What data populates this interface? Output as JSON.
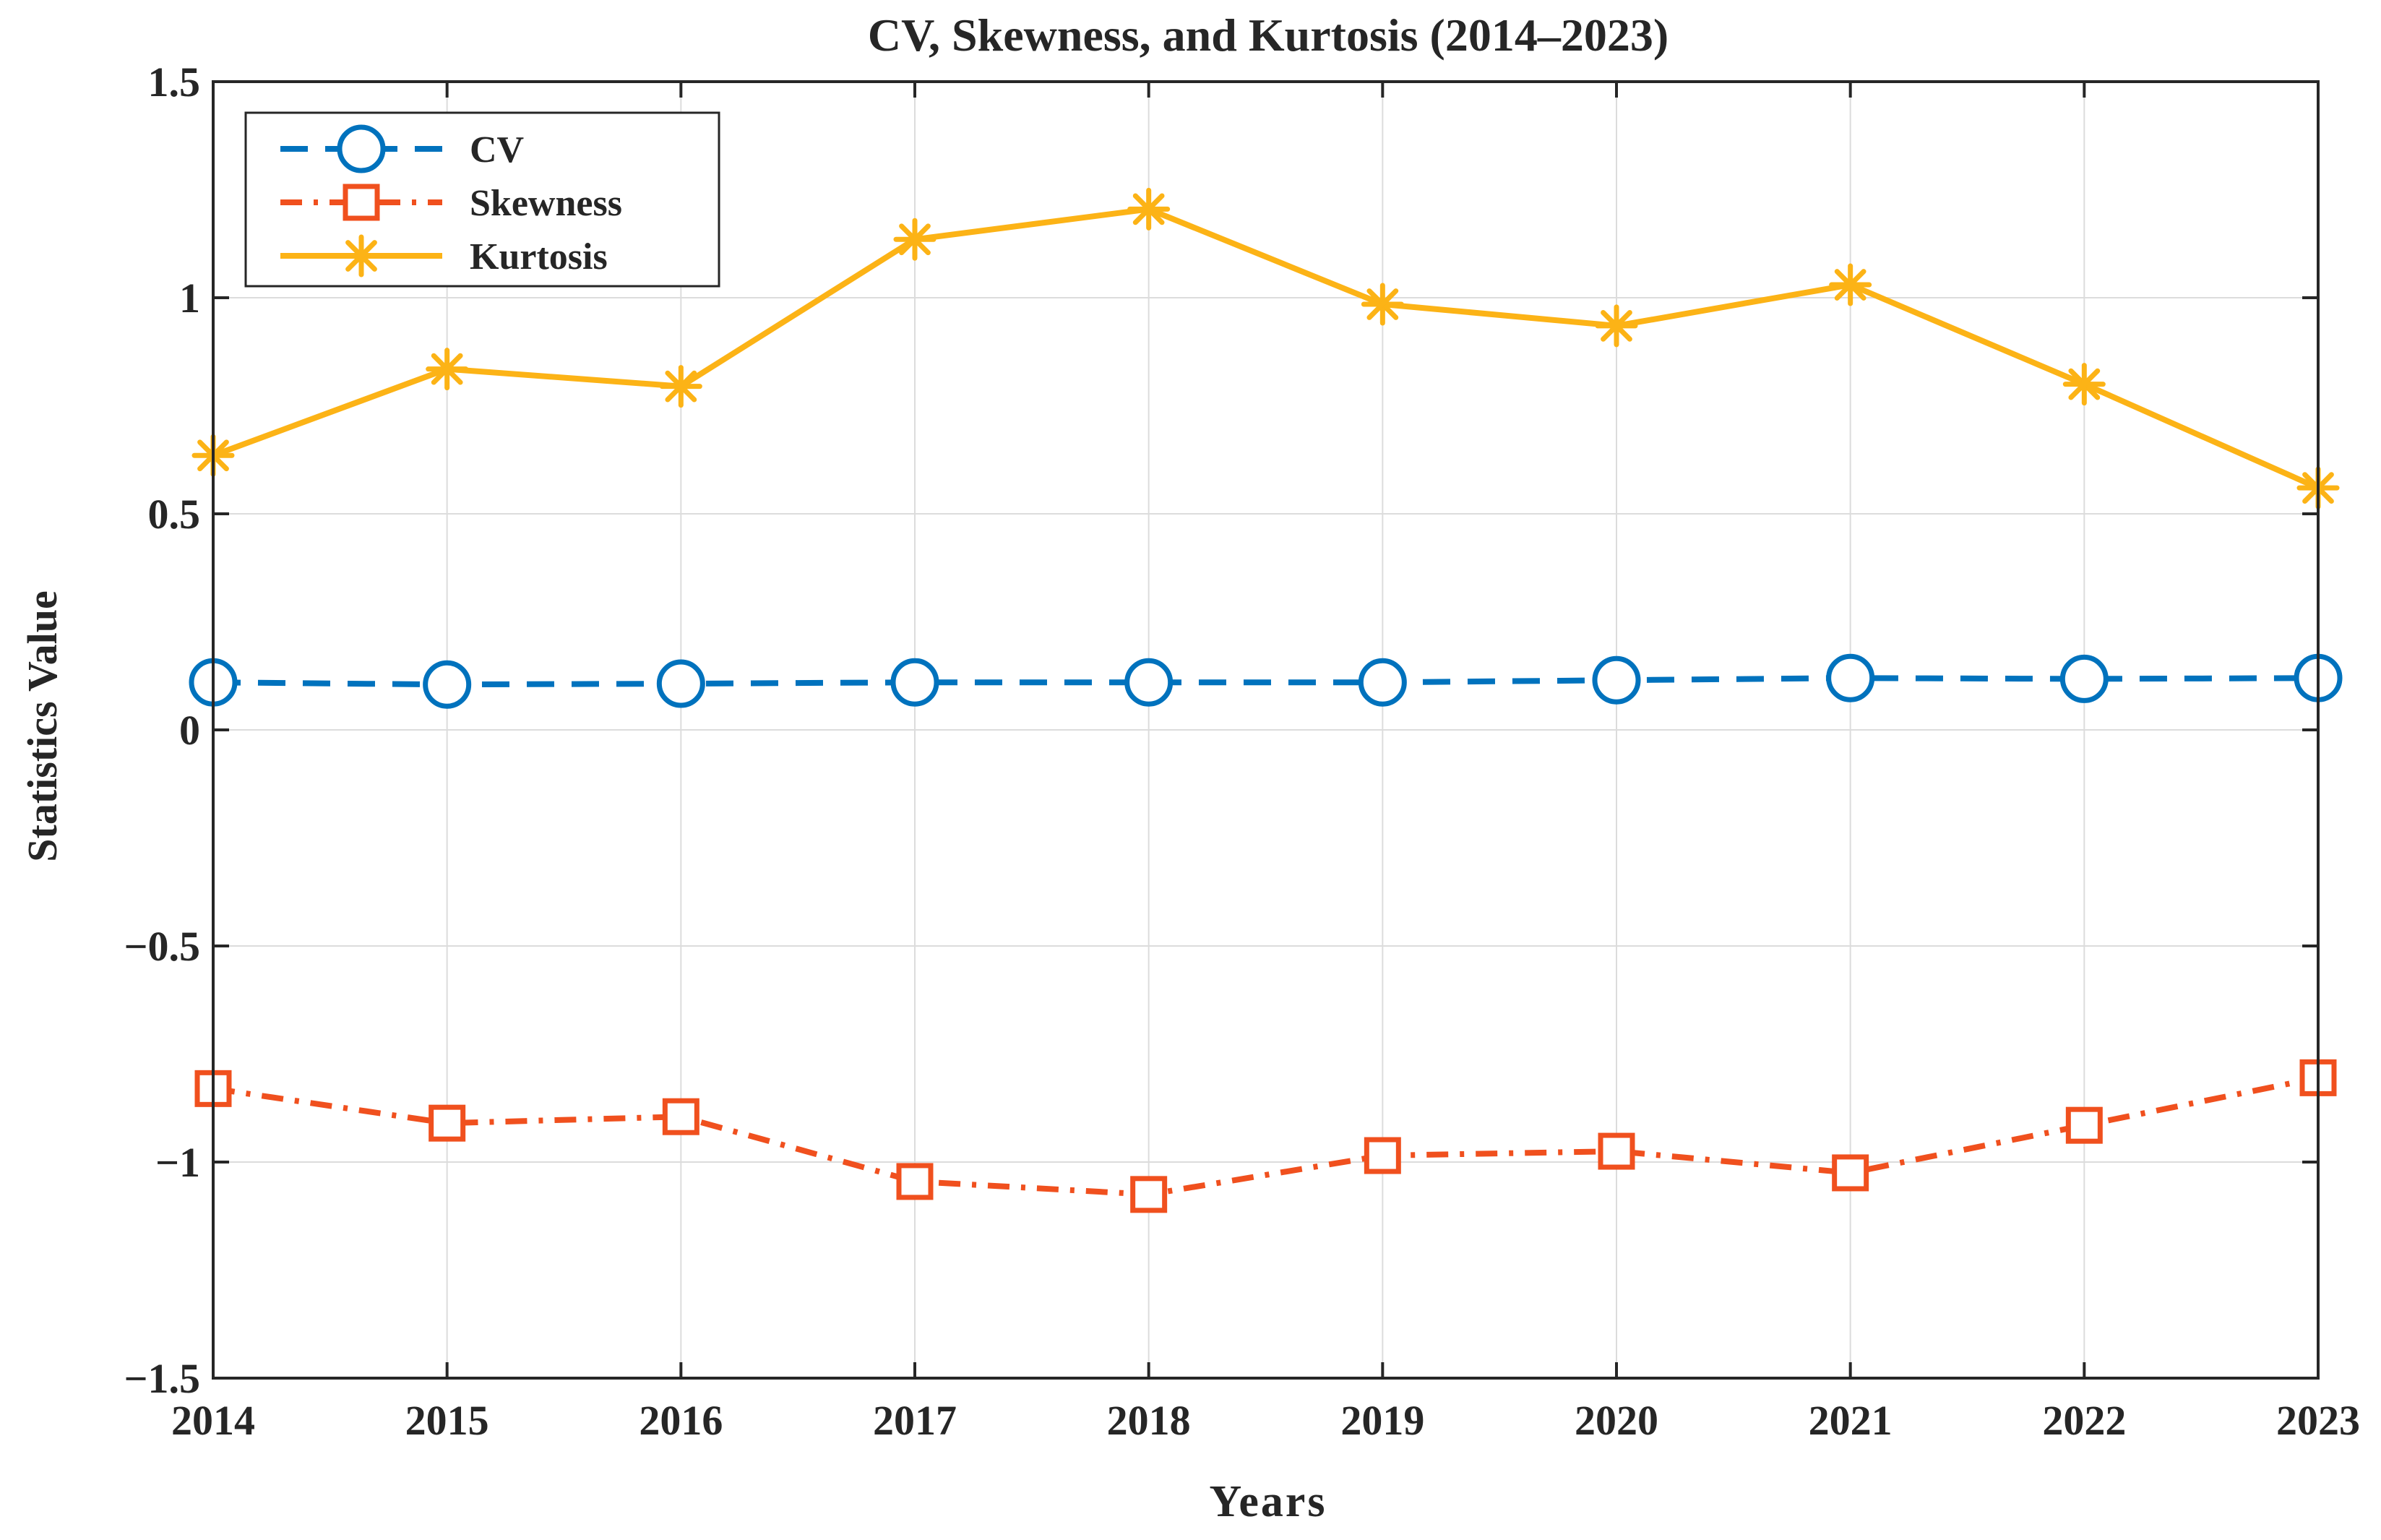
{
  "chart_data": {
    "type": "line",
    "title": "CV, Skewness, and Kurtosis (2014–2023)",
    "xlabel": "Years",
    "ylabel": "Statistics Value",
    "x": [
      2014,
      2015,
      2016,
      2017,
      2018,
      2019,
      2020,
      2021,
      2022,
      2023
    ],
    "x_tick_labels": [
      "2014",
      "2015",
      "2016",
      "2017",
      "2018",
      "2019",
      "2020",
      "2021",
      "2022",
      "2023"
    ],
    "ylim": [
      -1.5,
      1.5
    ],
    "y_ticks": [
      -1.5,
      -1,
      -0.5,
      0,
      0.5,
      1,
      1.5
    ],
    "y_tick_labels": [
      "−1.5",
      "−1",
      "−0.5",
      "0",
      "0.5",
      "1",
      "1.5"
    ],
    "grid": true,
    "legend": "top-left",
    "series": [
      {
        "name": "CV",
        "color": "#0072BD",
        "line_style": "dashed",
        "marker": "circle",
        "values": [
          0.11,
          0.105,
          0.107,
          0.11,
          0.11,
          0.11,
          0.115,
          0.12,
          0.118,
          0.12
        ]
      },
      {
        "name": "Skewness",
        "color": "#F0501E",
        "line_style": "dash-dot",
        "marker": "square",
        "values": [
          -0.83,
          -0.91,
          -0.895,
          -1.045,
          -1.075,
          -0.985,
          -0.975,
          -1.025,
          -0.915,
          -0.805
        ]
      },
      {
        "name": "Kurtosis",
        "color": "#FCB316",
        "line_style": "solid",
        "marker": "asterisk",
        "values": [
          0.635,
          0.835,
          0.795,
          1.135,
          1.205,
          0.985,
          0.935,
          1.03,
          0.8,
          0.56
        ]
      }
    ]
  }
}
